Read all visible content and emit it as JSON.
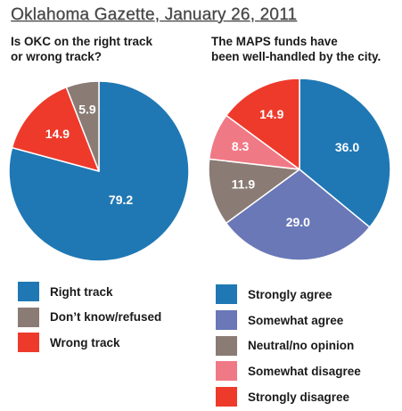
{
  "header": {
    "title": "Oklahoma Gazette, January 26, 2011"
  },
  "chart_data": [
    {
      "type": "pie",
      "title": "Is OKC on the right track\nor wrong track?",
      "start": "12 o'clock, clockwise",
      "slices": [
        {
          "label": "Right track",
          "value": 79.2,
          "value_text": "79.2",
          "color": "#1f78b4"
        },
        {
          "label": "Wrong track",
          "value": 14.9,
          "value_text": "14.9",
          "color": "#ee3a2b"
        },
        {
          "label": "Don’t know/refused",
          "value": 5.9,
          "value_text": "5.9",
          "color": "#8a7b74"
        }
      ],
      "legend_order": [
        "Right track",
        "Don’t know/refused",
        "Wrong track"
      ],
      "legend_position": "below"
    },
    {
      "type": "pie",
      "title": "The MAPS funds have\nbeen well-handled by the city.",
      "start": "12 o'clock, clockwise",
      "slices": [
        {
          "label": "Strongly agree",
          "value": 36.0,
          "value_text": "36.0",
          "color": "#1f78b4"
        },
        {
          "label": "Somewhat agree",
          "value": 29.0,
          "value_text": "29.0",
          "color": "#6a78b7"
        },
        {
          "label": "Neutral/no opinion",
          "value": 11.9,
          "value_text": "11.9",
          "color": "#8a7b74"
        },
        {
          "label": "Somewhat disagree",
          "value": 8.3,
          "value_text": "8.3",
          "color": "#f07986"
        },
        {
          "label": "Strongly disagree",
          "value": 14.9,
          "value_text": "14.9",
          "color": "#ee3a2b"
        }
      ],
      "legend_order": [
        "Strongly agree",
        "Somewhat agree",
        "Neutral/no opinion",
        "Somewhat disagree",
        "Strongly disagree"
      ],
      "legend_position": "below"
    }
  ]
}
